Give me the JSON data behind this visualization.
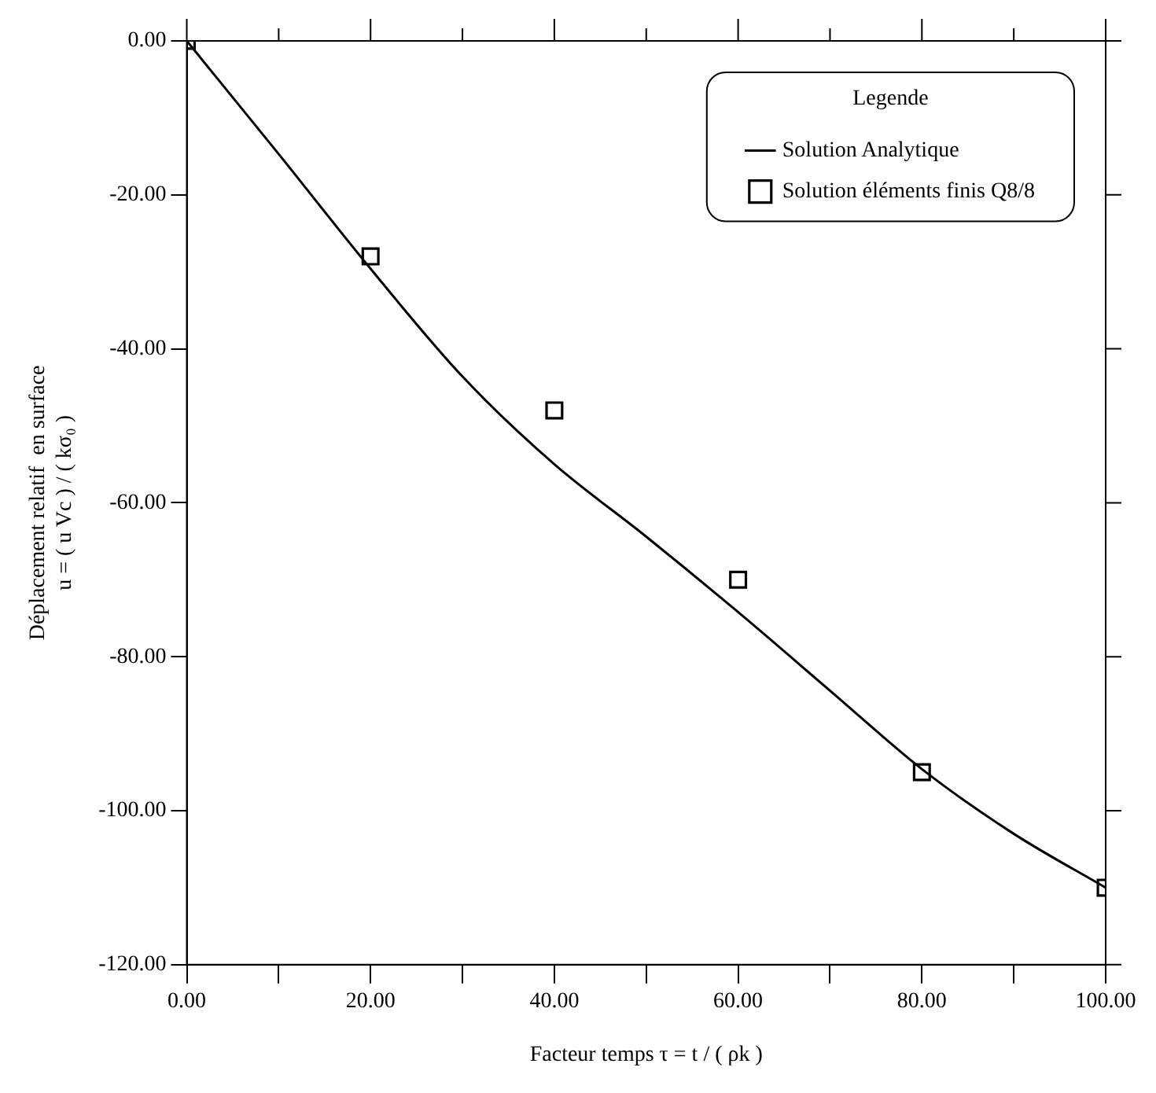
{
  "chart_data": {
    "type": "line",
    "xlabel": "Facteur temps τ = t / ( ρk )",
    "ylabel": "Déplacement relatif  en surface\nu = ( u Vc ) / ( kσ₀ )",
    "legend_title": "Legende",
    "series": [
      {
        "name": "Solution Analytique",
        "type": "line",
        "color": "#000000",
        "marker": "none",
        "line_style": "solid",
        "x": [
          0,
          10,
          20,
          30,
          40,
          50,
          60,
          70,
          80,
          90,
          100
        ],
        "values": [
          0,
          -14.7,
          -29.6,
          -43.6,
          -55,
          -64.4,
          -74.2,
          -84.4,
          -94.6,
          -103,
          -110
        ]
      },
      {
        "name": "Solution éléments finis Q8/8",
        "type": "scatter",
        "color": "#000000",
        "marker": "square",
        "x": [
          0,
          20,
          40,
          60,
          80,
          100
        ],
        "values": [
          0,
          -28,
          -48,
          -70,
          -95,
          -110
        ]
      }
    ],
    "xlim": [
      0,
      100
    ],
    "xticks": [
      {
        "value": 0,
        "label": "0.00"
      },
      {
        "value": 10,
        "label": null
      },
      {
        "value": 20,
        "label": "20.00"
      },
      {
        "value": 30,
        "label": null
      },
      {
        "value": 40,
        "label": "40.00"
      },
      {
        "value": 50,
        "label": null
      },
      {
        "value": 60,
        "label": "60.00"
      },
      {
        "value": 70,
        "label": null
      },
      {
        "value": 80,
        "label": "80.00"
      },
      {
        "value": 90,
        "label": null
      },
      {
        "value": 100,
        "label": "100.00"
      }
    ],
    "ylim": [
      -120,
      0
    ],
    "yticks": [
      {
        "value": -120,
        "label": "-120.00"
      },
      {
        "value": -100,
        "label": "-100.00"
      },
      {
        "value": -80,
        "label": "-80.00"
      },
      {
        "value": -60,
        "label": "-60.00"
      },
      {
        "value": -40,
        "label": "-40.00"
      },
      {
        "value": -20,
        "label": "-20.00"
      },
      {
        "value": 0,
        "label": "0.00"
      }
    ],
    "grid": false,
    "legend": "top right"
  }
}
